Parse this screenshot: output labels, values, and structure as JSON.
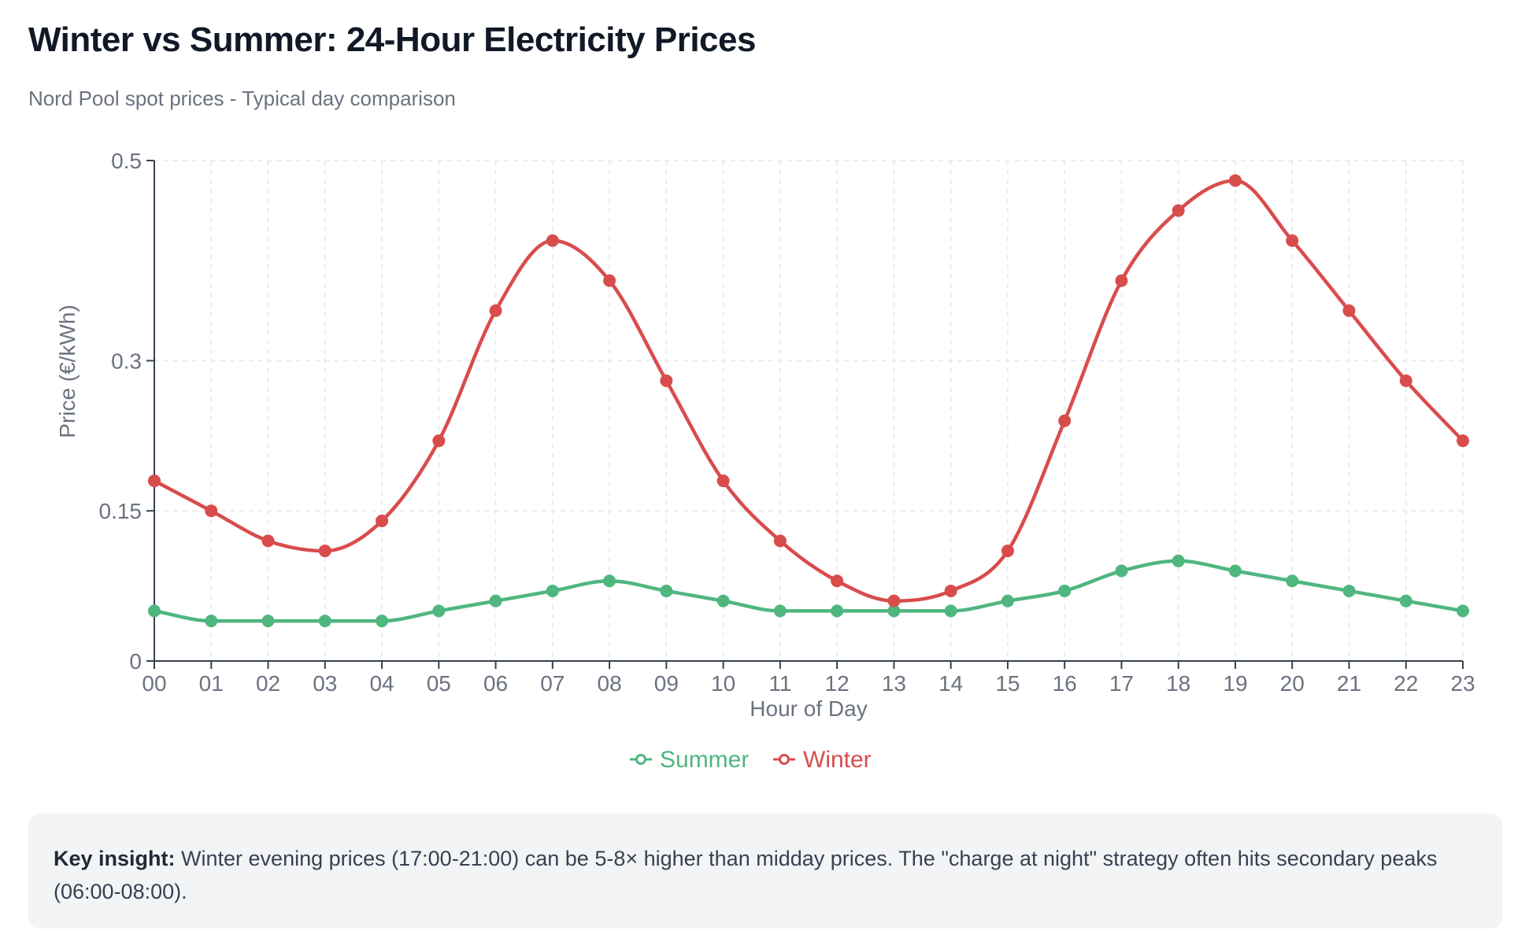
{
  "title": "Winter vs Summer: 24-Hour Electricity Prices",
  "subtitle": "Nord Pool spot prices - Typical day comparison",
  "insight": {
    "label": "Key insight:",
    "text": "Winter evening prices (17:00-21:00) can be 5-8× higher than midday prices. The \"charge at night\" strategy often hits secondary peaks (06:00-08:00)."
  },
  "chart_data": {
    "type": "line",
    "xlabel": "Hour of Day",
    "ylabel": "Price (€/kWh)",
    "ylim": [
      0,
      0.5
    ],
    "yticks": [
      "0",
      "0.15",
      "0.3",
      "0.5"
    ],
    "grid": true,
    "legend_position": "bottom-center",
    "categories": [
      "00",
      "01",
      "02",
      "03",
      "04",
      "05",
      "06",
      "07",
      "08",
      "09",
      "10",
      "11",
      "12",
      "13",
      "14",
      "15",
      "16",
      "17",
      "18",
      "19",
      "20",
      "21",
      "22",
      "23"
    ],
    "series": [
      {
        "name": "Summer",
        "color": "#4fb67f",
        "values": [
          0.05,
          0.04,
          0.04,
          0.04,
          0.04,
          0.05,
          0.06,
          0.07,
          0.08,
          0.07,
          0.06,
          0.05,
          0.05,
          0.05,
          0.05,
          0.06,
          0.07,
          0.09,
          0.1,
          0.09,
          0.08,
          0.07,
          0.06,
          0.05
        ]
      },
      {
        "name": "Winter",
        "color": "#d94c4c",
        "values": [
          0.18,
          0.15,
          0.12,
          0.11,
          0.14,
          0.22,
          0.35,
          0.42,
          0.38,
          0.28,
          0.18,
          0.12,
          0.08,
          0.06,
          0.07,
          0.11,
          0.24,
          0.38,
          0.45,
          0.48,
          0.42,
          0.35,
          0.28,
          0.22
        ]
      }
    ]
  }
}
